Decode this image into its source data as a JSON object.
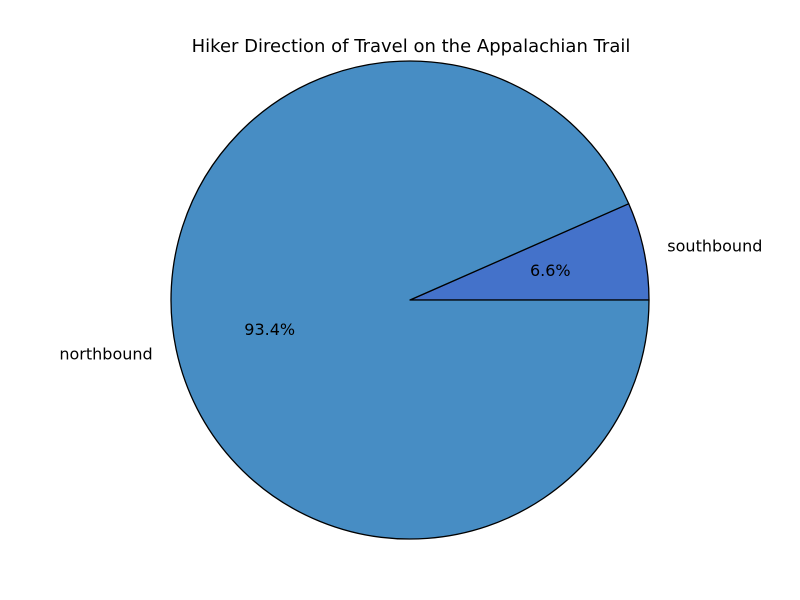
{
  "chart_data": {
    "type": "pie",
    "title": "Hiker Direction of Travel on the Appalachian Trail",
    "start_angle_deg": 0,
    "direction": "counterclockwise",
    "slices": [
      {
        "label": "southbound",
        "value": 6.6,
        "pct_label": "6.6%",
        "color": "#4472ca"
      },
      {
        "label": "northbound",
        "value": 93.4,
        "pct_label": "93.4%",
        "color": "#478dc4"
      }
    ],
    "edge_color": "#000000"
  }
}
